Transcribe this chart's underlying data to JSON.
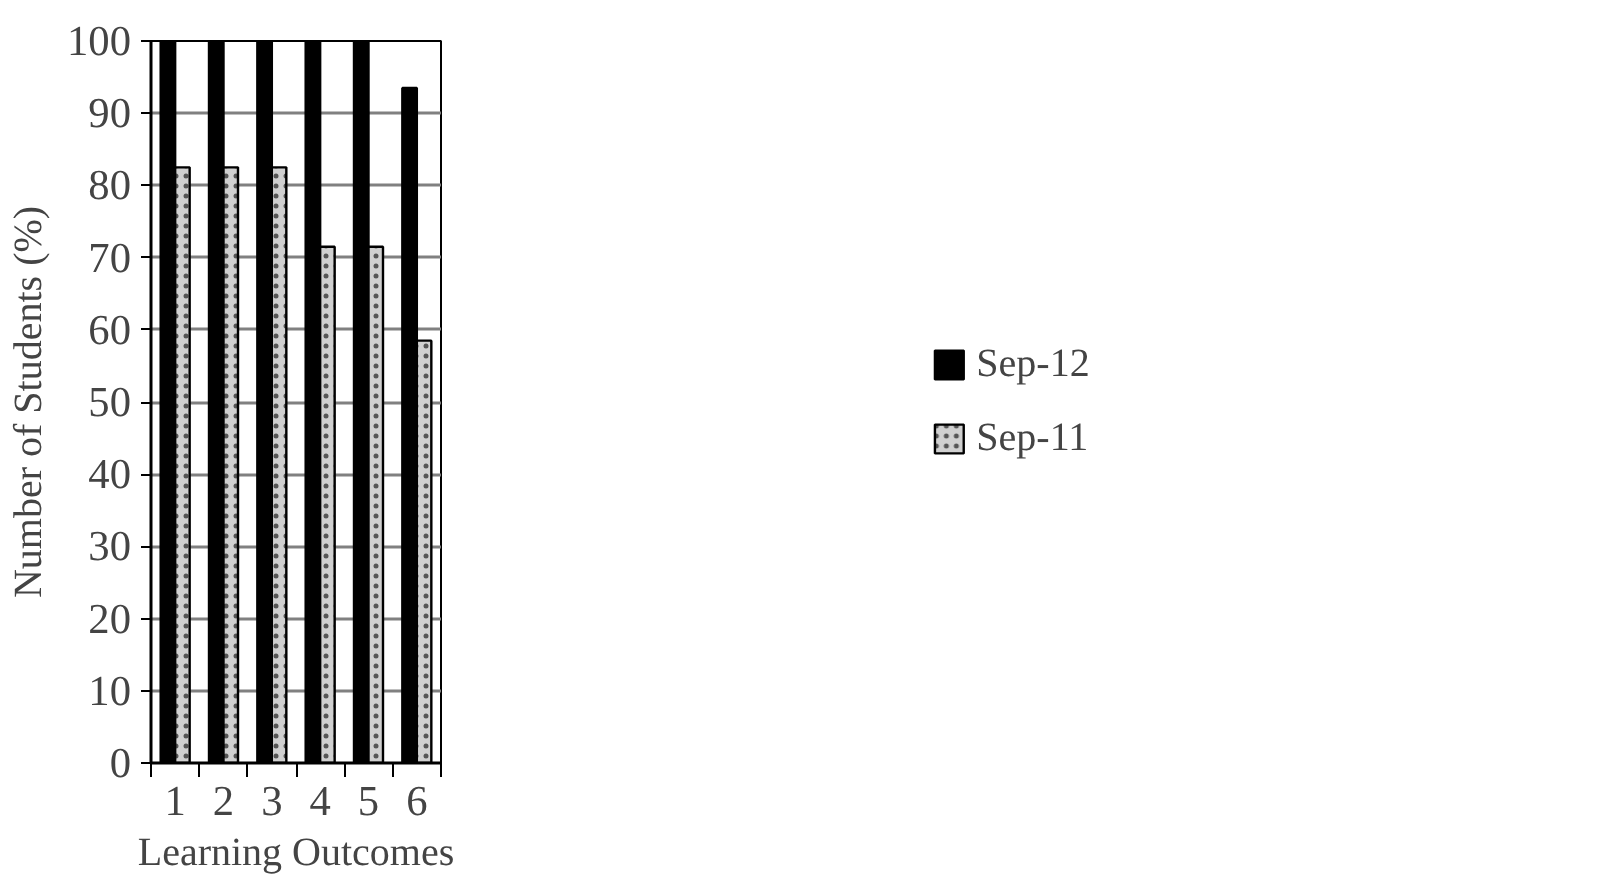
{
  "chart_data": {
    "type": "bar",
    "xlabel": "Learning Outcomes",
    "ylabel": "Number of Students (%)",
    "categories": [
      "1",
      "2",
      "3",
      "4",
      "5",
      "6"
    ],
    "series": [
      {
        "name": "Sep-12",
        "color": "#000000",
        "values": [
          100,
          100,
          100,
          100,
          100,
          93.5
        ]
      },
      {
        "name": "Sep-11",
        "color": "#d0d0d0",
        "values": [
          82.5,
          82.5,
          82.5,
          71.5,
          71.5,
          58.5
        ]
      }
    ],
    "ylim": [
      0,
      100
    ],
    "yticks": [
      0,
      10,
      20,
      30,
      40,
      50,
      60,
      70,
      80,
      90,
      100
    ],
    "grid": "y",
    "legend": "right"
  }
}
